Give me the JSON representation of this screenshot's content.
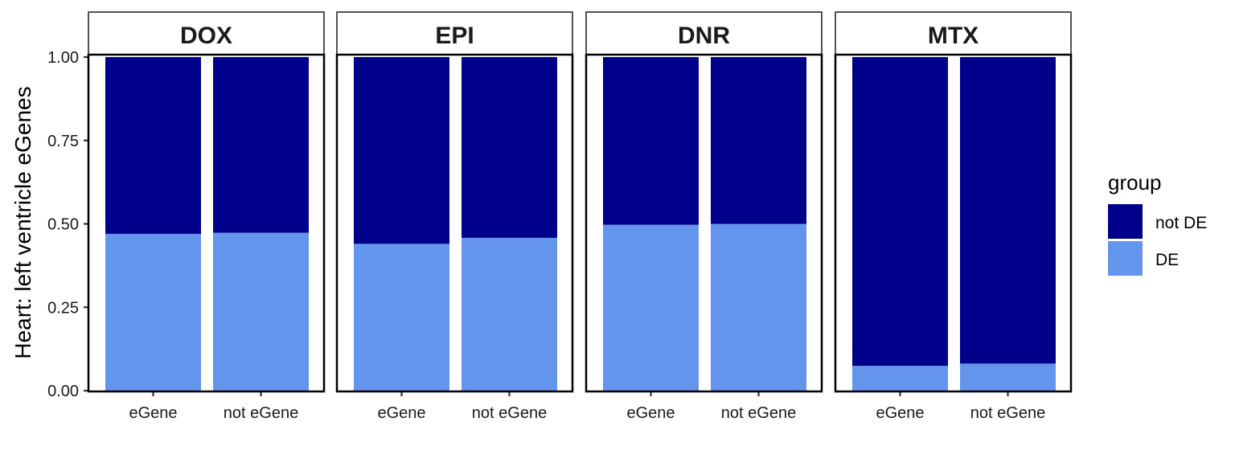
{
  "chart_data": {
    "type": "bar",
    "stacked": true,
    "ylabel": "Heart: left ventricle eGenes",
    "xlabel": "",
    "ylim": [
      0,
      1
    ],
    "yticks": [
      "0.00",
      "0.25",
      "0.50",
      "0.75",
      "1.00"
    ],
    "categories": [
      "eGene",
      "not eGene"
    ],
    "legend": {
      "title": "group",
      "position": "right",
      "entries": [
        {
          "name": "not DE",
          "color": "#00008B"
        },
        {
          "name": "DE",
          "color": "#6495ED"
        }
      ]
    },
    "panels": [
      {
        "name": "DOX",
        "series": [
          {
            "name": "DE",
            "values": [
              0.47,
              0.473
            ]
          },
          {
            "name": "not DE",
            "values": [
              0.53,
              0.527
            ]
          }
        ]
      },
      {
        "name": "EPI",
        "series": [
          {
            "name": "DE",
            "values": [
              0.44,
              0.458
            ]
          },
          {
            "name": "not DE",
            "values": [
              0.56,
              0.542
            ]
          }
        ]
      },
      {
        "name": "DNR",
        "series": [
          {
            "name": "DE",
            "values": [
              0.497,
              0.5
            ]
          },
          {
            "name": "not DE",
            "values": [
              0.503,
              0.5
            ]
          }
        ]
      },
      {
        "name": "MTX",
        "series": [
          {
            "name": "DE",
            "values": [
              0.074,
              0.081
            ]
          },
          {
            "name": "not DE",
            "values": [
              0.926,
              0.919
            ]
          }
        ]
      }
    ]
  }
}
